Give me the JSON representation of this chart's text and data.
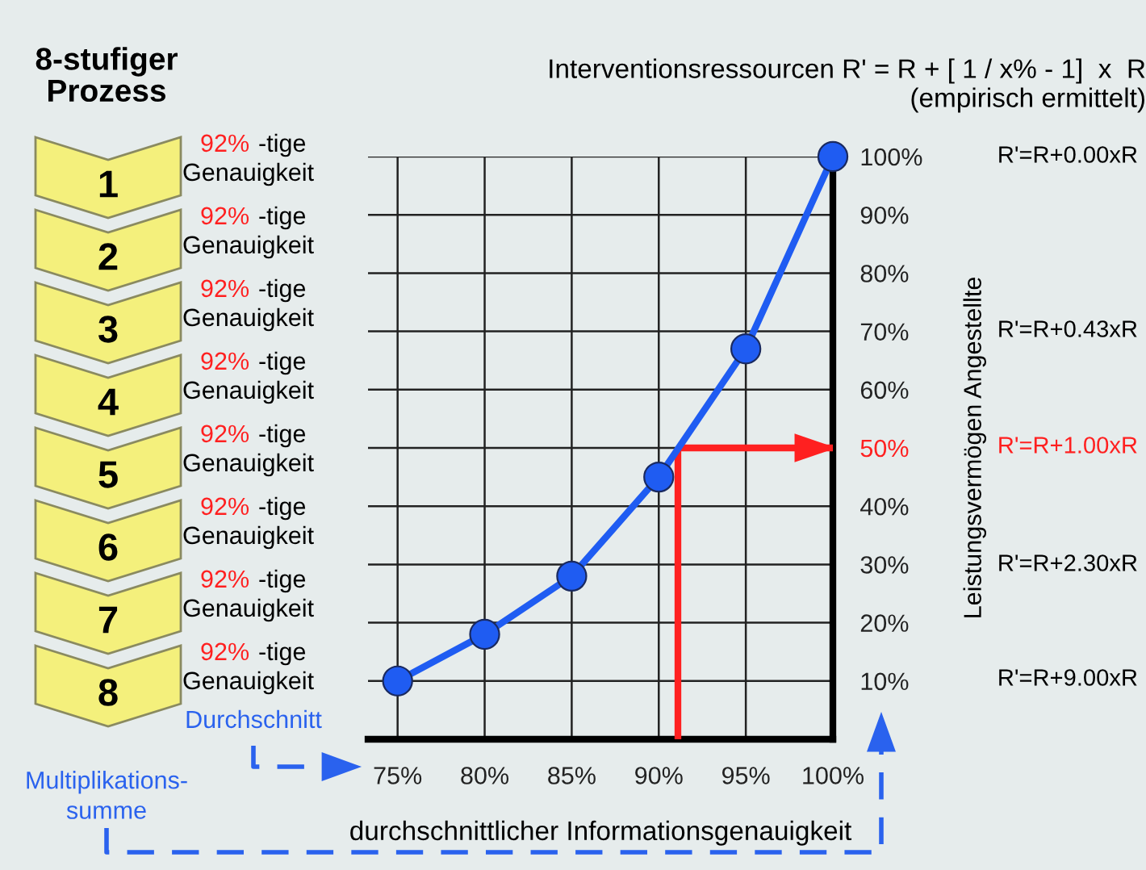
{
  "chart_data": {
    "type": "line",
    "title": "Interventionsressourcen R' = R + [ 1 / x% - 1]  x  R",
    "subtitle": "(empirisch ermittelt)",
    "xlabel": "durchschnittlicher Informationsgenauigkeit",
    "ylabel": "Leistungsvermögen Angestellte",
    "x": [
      75,
      80,
      85,
      90,
      95,
      100
    ],
    "series": [
      {
        "color": "#1f5cf2",
        "values": [
          10,
          18,
          28,
          45,
          67,
          100
        ]
      }
    ],
    "xlim": [
      73.3,
      100
    ],
    "xticks": [
      {
        "value": 75,
        "label": "75%"
      },
      {
        "value": 80,
        "label": "80%"
      },
      {
        "value": 85,
        "label": "85%"
      },
      {
        "value": 90,
        "label": "90%"
      },
      {
        "value": 95,
        "label": "95%"
      },
      {
        "value": 100,
        "label": "100%"
      }
    ],
    "ylim": [
      0,
      100
    ],
    "yticks": [
      {
        "value": 10,
        "label": "10%"
      },
      {
        "value": 20,
        "label": "20%"
      },
      {
        "value": 30,
        "label": "30%"
      },
      {
        "value": 40,
        "label": "40%"
      },
      {
        "value": 50,
        "label": "50%"
      },
      {
        "value": 60,
        "label": "60%"
      },
      {
        "value": 70,
        "label": "70%"
      },
      {
        "value": 80,
        "label": "80%"
      },
      {
        "value": 90,
        "label": "90%"
      },
      {
        "value": 100,
        "label": "100%"
      }
    ],
    "ref_lines": [
      {
        "axis": "x",
        "value": 91.1,
        "color": "#ff2020"
      },
      {
        "axis": "y",
        "value": 50,
        "color": "#ff2020"
      }
    ],
    "grid": true,
    "marker": "circle",
    "line_style": "solid",
    "annotations": [
      "8-stufiger\nProzess",
      "1",
      "2",
      "3",
      "4",
      "5",
      "6",
      "7",
      "8",
      "92% -tige\nGenauigkeit",
      "92% -tige\nGenauigkeit",
      "92% -tige\nGenauigkeit",
      "92% -tige\nGenauigkeit",
      "92% -tige\nGenauigkeit",
      "92% -tige\nGenauigkeit",
      "92% -tige\nGenauigkeit",
      "92% -tige\nGenauigkeit",
      "Durchschnitt",
      "Multiplikations-\nsumme",
      "R'=R+0.00xR",
      "R'=R+0.43xR",
      "R'=R+1.00xR",
      "R'=R+2.30xR",
      "R'=R+9.00xR"
    ]
  }
}
